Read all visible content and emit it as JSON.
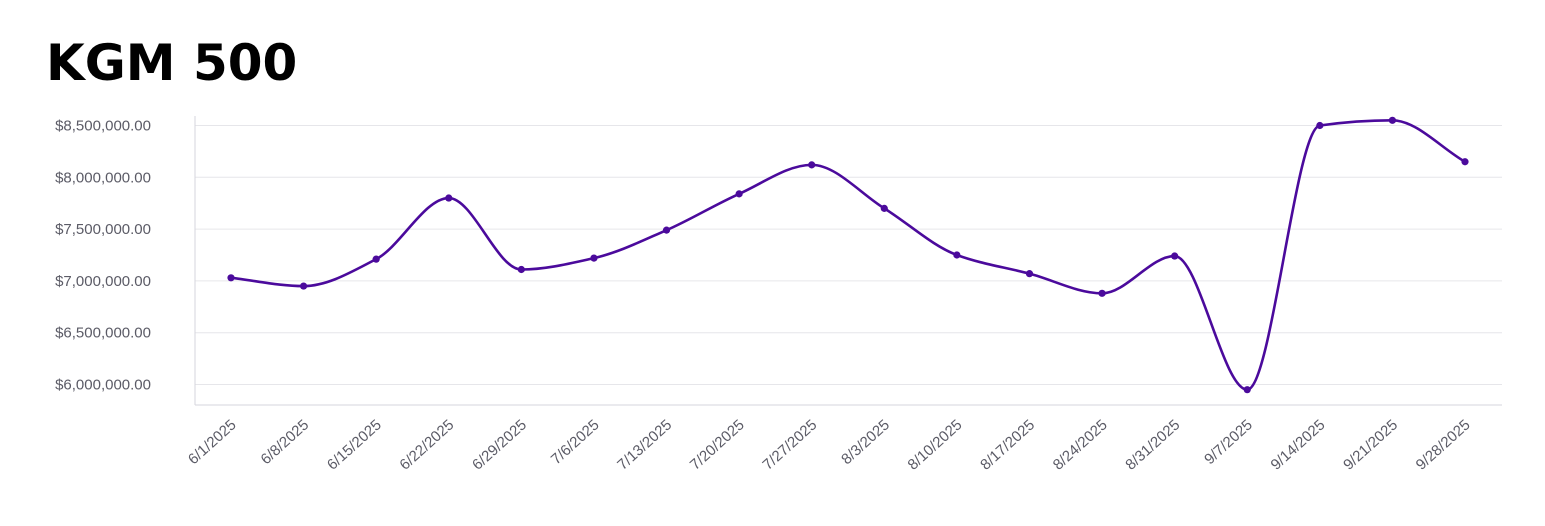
{
  "title": "KGM 500",
  "colors": {
    "line": "#4b0a9c",
    "grid": "#e6e6ea",
    "axis": "#d6d6dc",
    "tick_text": "#5b5b66"
  },
  "chart_data": {
    "type": "line",
    "title": "KGM 500",
    "xlabel": "",
    "ylabel": "",
    "grid": true,
    "smooth": true,
    "ylim": [
      5800000,
      8600000
    ],
    "yticks": [
      8500000,
      8000000,
      7500000,
      7000000,
      6500000,
      6000000
    ],
    "ytick_labels": [
      "$8,500,000.00",
      "$8,000,000.00",
      "$7,500,000.00",
      "$7,000,000.00",
      "$6,500,000.00",
      "$6,000,000.00"
    ],
    "categories": [
      "6/1/2025",
      "6/8/2025",
      "6/15/2025",
      "6/22/2025",
      "6/29/2025",
      "7/6/2025",
      "7/13/2025",
      "7/20/2025",
      "7/27/2025",
      "8/3/2025",
      "8/10/2025",
      "8/17/2025",
      "8/24/2025",
      "8/31/2025",
      "9/7/2025",
      "9/14/2025",
      "9/21/2025",
      "9/28/2025"
    ],
    "series": [
      {
        "values": [
          7030000,
          6950000,
          7210000,
          7800000,
          7110000,
          7220000,
          7490000,
          7840000,
          8120000,
          7700000,
          7250000,
          7070000,
          6880000,
          7240000,
          5950000,
          8500000,
          8550000,
          8150000
        ]
      }
    ]
  }
}
